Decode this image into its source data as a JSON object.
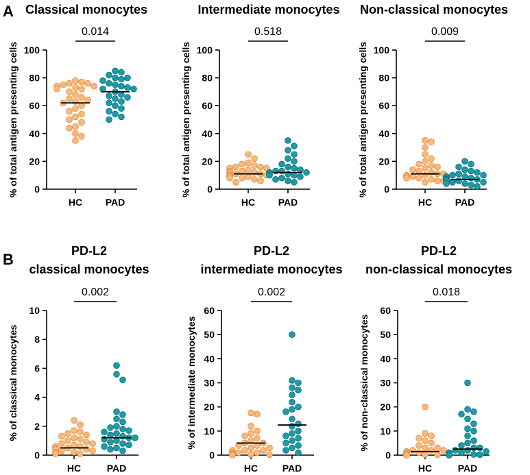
{
  "colors": {
    "hc": "#FBB97A",
    "hc_edge": "#E08A3C",
    "pad": "#1C9BA8",
    "pad_edge": "#0E6F7A"
  },
  "panel_labels": {
    "a": "A",
    "b": "B"
  },
  "chart_data": [
    {
      "type": "scatter",
      "title_lines": [
        "Classical  monocytes"
      ],
      "ylabel": "% of total antigen presenting cells",
      "ylim": [
        0,
        100
      ],
      "yticks": [
        "0",
        "20",
        "40",
        "60",
        "80",
        "100"
      ],
      "categories": [
        "HC",
        "PAD"
      ],
      "p_value": "0.014",
      "series": [
        {
          "name": "HC",
          "median": 62,
          "values": [
            78,
            77,
            76,
            76,
            75,
            74,
            74,
            73,
            72,
            72,
            70,
            68,
            66,
            65,
            64,
            63,
            62,
            60,
            58,
            56,
            54,
            52,
            50,
            48,
            45,
            44,
            40,
            38,
            35
          ]
        },
        {
          "name": "PAD",
          "median": 70,
          "values": [
            85,
            84,
            82,
            80,
            80,
            79,
            78,
            76,
            75,
            74,
            73,
            72,
            72,
            70,
            68,
            67,
            66,
            65,
            63,
            62,
            60,
            58,
            56,
            54,
            52,
            50
          ]
        }
      ]
    },
    {
      "type": "scatter",
      "title_lines": [
        "Intermediate monocytes"
      ],
      "ylabel": "% of total antigen presenting cells",
      "ylim": [
        0,
        100
      ],
      "yticks": [
        "0",
        "20",
        "40",
        "60",
        "80",
        "100"
      ],
      "categories": [
        "HC",
        "PAD"
      ],
      "p_value": "0.518",
      "series": [
        {
          "name": "HC",
          "median": 11,
          "values": [
            25,
            22,
            19,
            18,
            17,
            16,
            16,
            15,
            15,
            14,
            13,
            13,
            12,
            12,
            11,
            11,
            11,
            10,
            10,
            9,
            9,
            8,
            8,
            7,
            6,
            5
          ]
        },
        {
          "name": "PAD",
          "median": 12,
          "values": [
            35,
            31,
            28,
            25,
            22,
            20,
            18,
            16,
            15,
            14,
            13,
            13,
            12,
            12,
            11,
            11,
            10,
            10,
            9,
            8,
            7,
            6,
            5
          ]
        }
      ]
    },
    {
      "type": "scatter",
      "title_lines": [
        "Non-classical monocytes"
      ],
      "ylabel": "% of total antigen presenting cells",
      "ylim": [
        0,
        100
      ],
      "yticks": [
        "0",
        "20",
        "40",
        "60",
        "80",
        "100"
      ],
      "categories": [
        "HC",
        "PAD"
      ],
      "p_value": "0.009",
      "series": [
        {
          "name": "HC",
          "median": 11,
          "values": [
            35,
            34,
            30,
            25,
            22,
            20,
            18,
            17,
            16,
            15,
            14,
            13,
            12,
            11,
            11,
            10,
            10,
            9,
            9,
            8,
            8,
            7,
            6,
            6,
            5
          ]
        },
        {
          "name": "PAD",
          "median": 7,
          "values": [
            20,
            18,
            16,
            14,
            13,
            12,
            11,
            10,
            10,
            9,
            9,
            8,
            8,
            8,
            7,
            7,
            7,
            6,
            6,
            6,
            5,
            5,
            4,
            4,
            3,
            2
          ]
        }
      ]
    },
    {
      "type": "scatter",
      "title_lines": [
        "PD-L2",
        "classical monocytes"
      ],
      "ylabel": "% of classical monocytes",
      "ylim": [
        0,
        10
      ],
      "yticks": [
        "0",
        "2",
        "4",
        "6",
        "8",
        "10"
      ],
      "categories": [
        "HC",
        "PAD"
      ],
      "p_value": "0.002",
      "series": [
        {
          "name": "HC",
          "median": 0.5,
          "values": [
            2.4,
            2.1,
            1.7,
            1.6,
            1.5,
            1.4,
            1.3,
            1.2,
            1.1,
            1.0,
            0.9,
            0.8,
            0.8,
            0.7,
            0.6,
            0.6,
            0.5,
            0.5,
            0.4,
            0.4,
            0.3,
            0.3,
            0.2,
            0.2,
            0.1,
            0.1,
            0.1
          ]
        },
        {
          "name": "PAD",
          "median": 1.2,
          "values": [
            6.2,
            5.6,
            5.2,
            3.0,
            2.8,
            2.5,
            2.3,
            2.0,
            1.9,
            1.8,
            1.7,
            1.6,
            1.5,
            1.4,
            1.3,
            1.2,
            1.2,
            1.1,
            1.0,
            0.9,
            0.8,
            0.7,
            0.6,
            0.5,
            0.4,
            0.3
          ]
        }
      ]
    },
    {
      "type": "scatter",
      "title_lines": [
        "PD-L2",
        "intermediate monocytes"
      ],
      "ylabel": "% of intermediate monocytes",
      "ylim": [
        0,
        60
      ],
      "yticks": [
        "0",
        "10",
        "20",
        "30",
        "40",
        "50",
        "60"
      ],
      "categories": [
        "HC",
        "PAD"
      ],
      "p_value": "0.002",
      "series": [
        {
          "name": "HC",
          "median": 5,
          "values": [
            17.5,
            17,
            12,
            10,
            9,
            8,
            7,
            6,
            5,
            5,
            4,
            4,
            3,
            3,
            2,
            2,
            2,
            1,
            1,
            1,
            0.5,
            0.5,
            0.3,
            0.2,
            0.1,
            0
          ]
        },
        {
          "name": "PAD",
          "median": 12.5,
          "values": [
            50,
            31,
            30,
            28,
            27,
            25,
            22,
            20,
            19,
            18,
            15,
            13,
            12,
            10,
            9,
            8,
            7,
            6,
            5,
            4,
            3,
            2,
            1
          ]
        }
      ]
    },
    {
      "type": "scatter",
      "title_lines": [
        "PD-L2",
        "non-classical monocytes"
      ],
      "ylabel": "% of non-classical monocytes",
      "ylim": [
        0,
        60
      ],
      "yticks": [
        "0",
        "10",
        "20",
        "30",
        "40",
        "50",
        "60"
      ],
      "categories": [
        "HC",
        "PAD"
      ],
      "p_value": "0.018",
      "series": [
        {
          "name": "HC",
          "median": 1.5,
          "values": [
            20,
            9,
            8,
            7,
            6,
            5,
            4,
            3,
            3,
            2,
            2,
            2,
            1.5,
            1,
            1,
            1,
            0.5,
            0.5,
            0.3,
            0.2,
            0.1,
            0.1,
            0,
            0,
            0
          ]
        },
        {
          "name": "PAD",
          "median": 2.5,
          "values": [
            30,
            19,
            18,
            17,
            15,
            13,
            11,
            10,
            8,
            6,
            5,
            4,
            3,
            3,
            2,
            2,
            1.5,
            1,
            1,
            0.5,
            0.3,
            0.2,
            0,
            0
          ]
        }
      ]
    }
  ]
}
